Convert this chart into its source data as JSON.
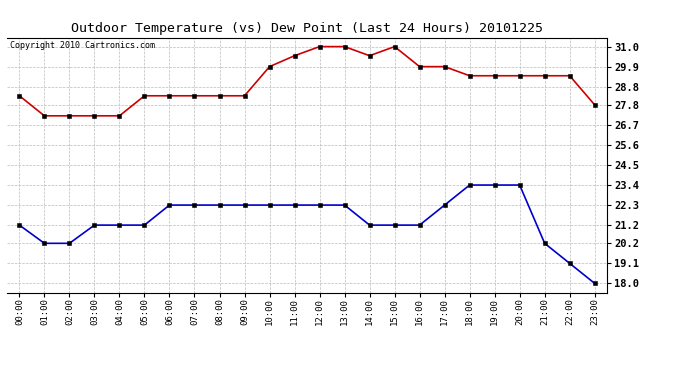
{
  "title": "Outdoor Temperature (vs) Dew Point (Last 24 Hours) 20101225",
  "copyright": "Copyright 2010 Cartronics.com",
  "x_labels": [
    "00:00",
    "01:00",
    "02:00",
    "03:00",
    "04:00",
    "05:00",
    "06:00",
    "07:00",
    "08:00",
    "09:00",
    "10:00",
    "11:00",
    "12:00",
    "13:00",
    "14:00",
    "15:00",
    "16:00",
    "17:00",
    "18:00",
    "19:00",
    "20:00",
    "21:00",
    "22:00",
    "23:00"
  ],
  "temp_red": [
    28.3,
    27.2,
    27.2,
    27.2,
    27.2,
    28.3,
    28.3,
    28.3,
    28.3,
    28.3,
    29.9,
    30.5,
    31.0,
    31.0,
    30.5,
    31.0,
    29.9,
    29.9,
    29.4,
    29.4,
    29.4,
    29.4,
    29.4,
    27.8
  ],
  "temp_blue": [
    21.2,
    20.2,
    20.2,
    21.2,
    21.2,
    21.2,
    22.3,
    22.3,
    22.3,
    22.3,
    22.3,
    22.3,
    22.3,
    22.3,
    21.2,
    21.2,
    21.2,
    22.3,
    23.4,
    23.4,
    23.4,
    20.2,
    19.1,
    18.0
  ],
  "ylim_min": 17.5,
  "ylim_max": 31.5,
  "yticks": [
    18.0,
    19.1,
    20.2,
    21.2,
    22.3,
    23.4,
    24.5,
    25.6,
    26.7,
    27.8,
    28.8,
    29.9,
    31.0
  ],
  "red_color": "#cc0000",
  "blue_color": "#0000cc",
  "bg_color": "#ffffff",
  "grid_color": "#bbbbbb",
  "title_fontsize": 9.5,
  "copyright_fontsize": 6.0,
  "tick_fontsize": 6.5,
  "ytick_fontsize": 7.5
}
